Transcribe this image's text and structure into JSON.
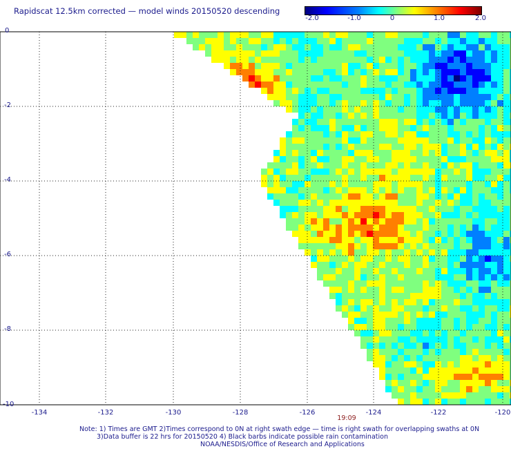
{
  "title": "Rapidscat 12.5km corrected — model winds 20150520 descending",
  "colorbar": {
    "ticks": [
      "-2.0",
      "-1.0",
      "0",
      "1.0",
      "2.0"
    ],
    "colors": [
      "#00007f",
      "#0000ff",
      "#007fff",
      "#00ffff",
      "#7fff7f",
      "#ffff00",
      "#ff7f00",
      "#ff0000",
      "#7f0000"
    ]
  },
  "map": {
    "lat_labels": [
      "0",
      "-2",
      "-4",
      "-6",
      "-8",
      "-10"
    ],
    "lon_labels": [
      "-134",
      "-132",
      "-130",
      "-128",
      "-126",
      "-124",
      "-122",
      "-120"
    ],
    "lat_range": [
      -10,
      0
    ],
    "lon_range": [
      -135,
      -120
    ],
    "grid": true,
    "overpass_time": "19:09"
  },
  "notes": {
    "line1": "Note: 1) Times are GMT 2)Times correspond to 0N at right swath edge — time is right swath for overlapping swaths at 0N",
    "line2": "3)Data buffer is 22 hrs for 20150520 4) Black barbs indicate possible rain contamination",
    "line3": "NOAA/NESDIS/Office of Research and Applications"
  }
}
